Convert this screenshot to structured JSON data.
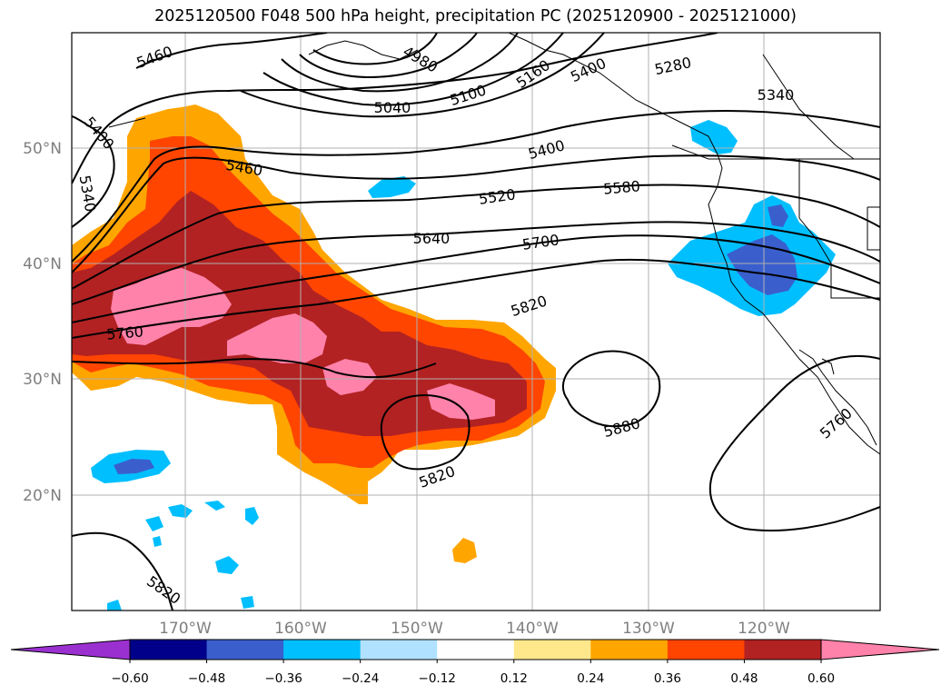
{
  "title": "2025120500 F048 500 hPa height, precipitation PC (2025120900 - 2025121000)",
  "lat_labels": [
    "50°N",
    "40°N",
    "30°N",
    "20°N"
  ],
  "lon_labels": [
    "170°W",
    "160°W",
    "150°W",
    "140°W",
    "130°W",
    "120°W"
  ],
  "colorbar": {
    "ticks": [
      "−0.60",
      "−0.48",
      "−0.36",
      "−0.24",
      "−0.12",
      "0.12",
      "0.24",
      "0.36",
      "0.48",
      "0.60"
    ],
    "colors": [
      "#9b30d0",
      "#00008b",
      "#3a5fcd",
      "#00bfff",
      "#b0e2ff",
      "#ffffff",
      "#ffe88c",
      "#ffa500",
      "#ff4500",
      "#b22222",
      "#ff82ab"
    ]
  },
  "contour_labels": {
    "c5460a": "5460",
    "c4980": "4980",
    "c5280": "5280",
    "c5400a": "5400",
    "c5040": "5040",
    "c5100": "5100",
    "c5160": "5160",
    "c5340a": "5340",
    "c5400b": "5400",
    "c5340b": "5340",
    "c5460b": "5460",
    "c5400c": "5400",
    "c5520": "5520",
    "c5580": "5580",
    "c5640": "5640",
    "c5700": "5700",
    "c5820a": "5820",
    "c5760a": "5760",
    "c5880": "5880",
    "c5820b": "5820",
    "c5760b": "5760",
    "c5820c": "5820"
  }
}
